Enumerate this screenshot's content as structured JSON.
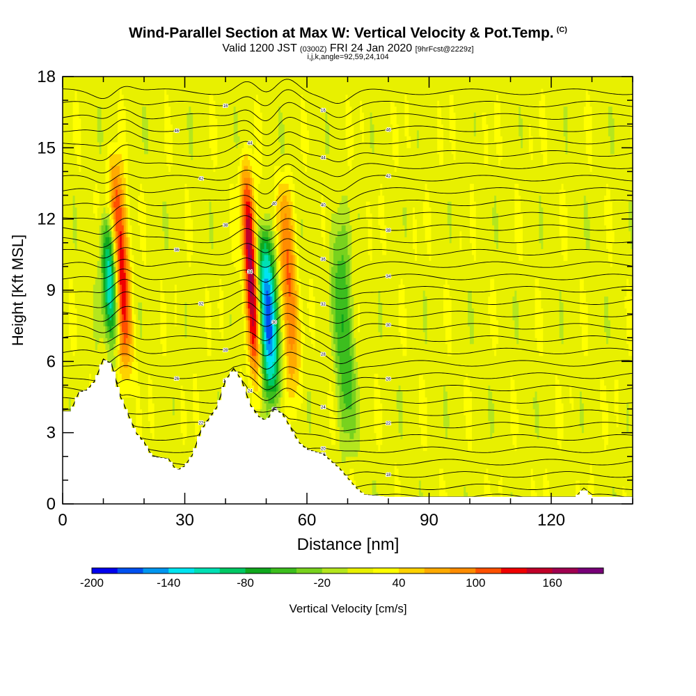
{
  "title": {
    "main": "Wind-Parallel Section at Max W: Vertical Velocity & Pot.Temp.",
    "main_tag": "(C)",
    "valid_prefix": "Valid 1200 JST",
    "valid_utc": "(0300Z)",
    "valid_date": "FRI 24 Jan 2020",
    "forecast": "[9hrFcst@2229z]",
    "indices": "i,j,k,angle=92,59,24,104"
  },
  "chart_data": {
    "type": "heatmap",
    "xlabel": "Distance [nm]",
    "ylabel": "Height [Kft MSL]",
    "xlim": [
      0,
      140
    ],
    "ylim": [
      0,
      18
    ],
    "x_ticks": [
      0,
      30,
      60,
      90,
      120
    ],
    "y_ticks": [
      0,
      3,
      6,
      9,
      12,
      15,
      18
    ],
    "colorbar": {
      "label": "Vertical Velocity [cm/s]",
      "min": -200,
      "max": 200,
      "step": 20,
      "tick_labels": [
        -200,
        -140,
        -80,
        -20,
        40,
        100,
        160
      ],
      "colors": [
        "#0000ee",
        "#0050f0",
        "#0096f0",
        "#00e4f0",
        "#00e0b4",
        "#00c864",
        "#10a81e",
        "#3cbe1e",
        "#78d21e",
        "#b4e61e",
        "#e8f000",
        "#ffff00",
        "#ffd200",
        "#ffaa00",
        "#ff8c00",
        "#ff5000",
        "#f00000",
        "#c00028",
        "#a00050",
        "#780078"
      ]
    },
    "features": [
      {
        "type": "updraft",
        "x": 14,
        "top_kft": 17.6,
        "peak_cm_s": 160
      },
      {
        "type": "downdraft",
        "x": 11.5,
        "top_kft": 14,
        "peak_cm_s": -140
      },
      {
        "type": "updraft",
        "x": 46,
        "top_kft": 17.6,
        "peak_cm_s": 160
      },
      {
        "type": "downdraft",
        "x": 49.5,
        "top_kft": 14,
        "peak_cm_s": -200
      },
      {
        "type": "updraft",
        "x": 55,
        "top_kft": 17,
        "peak_cm_s": 100
      },
      {
        "type": "downdraft",
        "x": 68,
        "top_kft": 16,
        "peak_cm_s": -80
      }
    ],
    "terrain_kft": [
      [
        0,
        3.9
      ],
      [
        2,
        3.9
      ],
      [
        4,
        4.7
      ],
      [
        6,
        4.8
      ],
      [
        8,
        5.2
      ],
      [
        10,
        6.1
      ],
      [
        12,
        5.9
      ],
      [
        14,
        4.6
      ],
      [
        16,
        3.8
      ],
      [
        18,
        3.0
      ],
      [
        20,
        2.6
      ],
      [
        22,
        2.0
      ],
      [
        26,
        1.9
      ],
      [
        28,
        1.4
      ],
      [
        30,
        1.6
      ],
      [
        32,
        2.1
      ],
      [
        34,
        3.1
      ],
      [
        36,
        3.6
      ],
      [
        38,
        4.1
      ],
      [
        40,
        5.2
      ],
      [
        42,
        5.7
      ],
      [
        44,
        5.2
      ],
      [
        46,
        4.2
      ],
      [
        48,
        3.7
      ],
      [
        50,
        3.5
      ],
      [
        52,
        4.0
      ],
      [
        54,
        3.8
      ],
      [
        56,
        3.2
      ],
      [
        58,
        2.6
      ],
      [
        60,
        2.3
      ],
      [
        64,
        2.1
      ],
      [
        68,
        1.5
      ],
      [
        70,
        1.1
      ],
      [
        72,
        0.7
      ],
      [
        74,
        0.4
      ],
      [
        80,
        0.3
      ],
      [
        126,
        0.3
      ],
      [
        128,
        0.65
      ],
      [
        130,
        0.3
      ],
      [
        140,
        0.3
      ]
    ],
    "pot_temp_label_values": [
      "16",
      "18",
      "20",
      "22",
      "24",
      "26",
      "28",
      "30",
      "32",
      "34",
      "36",
      "38",
      "40",
      "42",
      "44",
      "46"
    ]
  }
}
